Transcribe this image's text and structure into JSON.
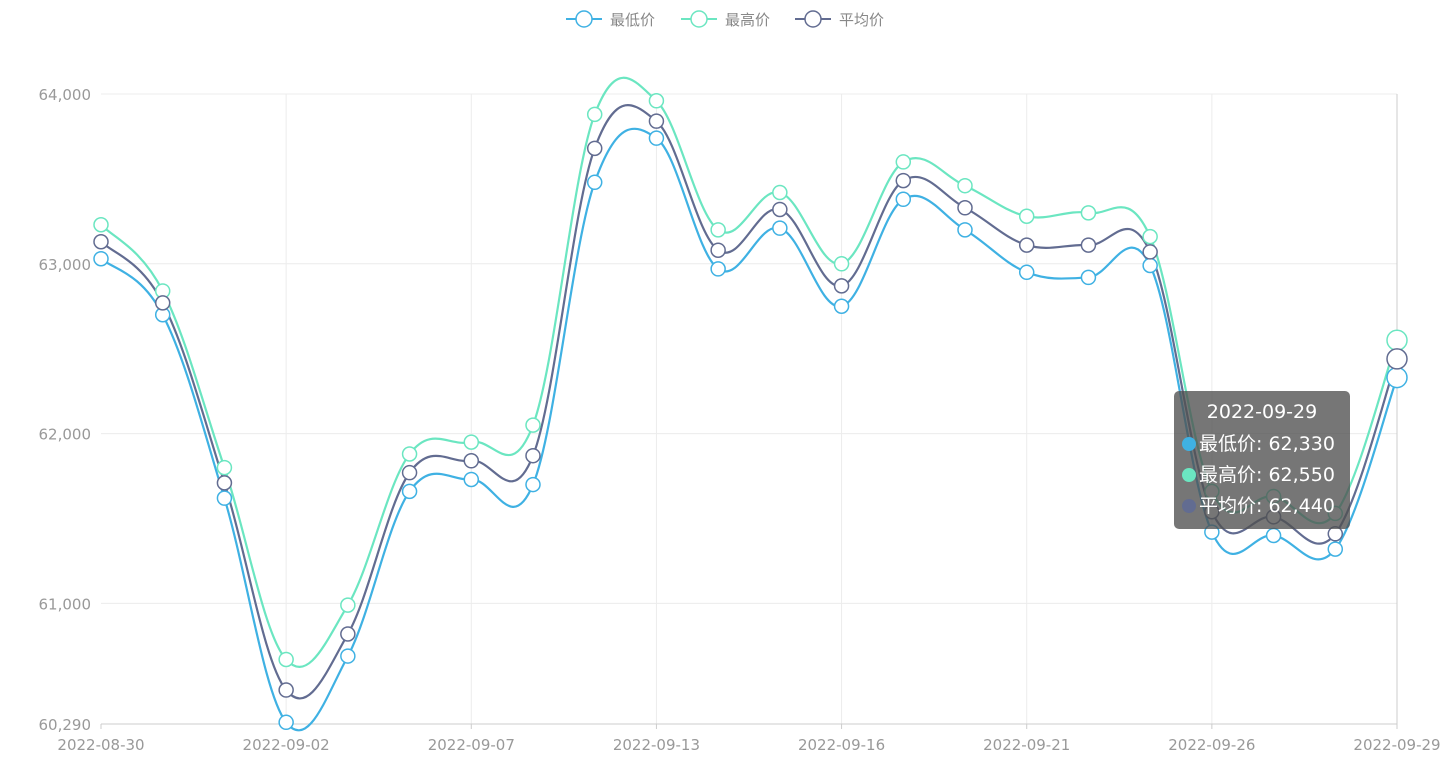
{
  "chart_data": {
    "type": "line",
    "smooth": true,
    "x": [
      "2022-08-30",
      "2022-08-31",
      "2022-09-01",
      "2022-09-02",
      "2022-09-05",
      "2022-09-06",
      "2022-09-07",
      "2022-09-08",
      "2022-09-09",
      "2022-09-13",
      "2022-09-14",
      "2022-09-15",
      "2022-09-16",
      "2022-09-19",
      "2022-09-20",
      "2022-09-21",
      "2022-09-22",
      "2022-09-23",
      "2022-09-26",
      "2022-09-27",
      "2022-09-28",
      "2022-09-29"
    ],
    "x_tick_labels": [
      "2022-08-30",
      "2022-09-02",
      "2022-09-07",
      "2022-09-13",
      "2022-09-16",
      "2022-09-21",
      "2022-09-26",
      "2022-09-29"
    ],
    "ylim": [
      60290,
      64000
    ],
    "y_ticks": [
      60290,
      61000,
      62000,
      63000,
      64000
    ],
    "y_tick_labels": [
      "60,290",
      "61,000",
      "62,000",
      "63,000",
      "64,000"
    ],
    "grid": true,
    "legend_position": "top-center",
    "series": [
      {
        "name": "最低价",
        "color": "#3fb1e3",
        "values": [
          63030,
          62700,
          61620,
          60300,
          60690,
          61660,
          61730,
          61700,
          63480,
          63740,
          62970,
          63210,
          62750,
          63380,
          63200,
          62950,
          62920,
          62990,
          61420,
          61400,
          61320,
          62330
        ]
      },
      {
        "name": "最高价",
        "color": "#6be6c1",
        "values": [
          63230,
          62840,
          61800,
          60670,
          60990,
          61880,
          61950,
          62050,
          63880,
          63960,
          63200,
          63420,
          63000,
          63600,
          63460,
          63280,
          63300,
          63160,
          61660,
          61630,
          61530,
          62550
        ]
      },
      {
        "name": "平均价",
        "color": "#626c91",
        "values": [
          63130,
          62770,
          61710,
          60490,
          60820,
          61770,
          61840,
          61870,
          63680,
          63840,
          63080,
          63320,
          62870,
          63490,
          63330,
          63110,
          63110,
          63070,
          61540,
          61510,
          61410,
          62440
        ]
      }
    ],
    "tooltip": {
      "title": "2022-09-29",
      "rows": [
        {
          "label": "最低价: 62,330",
          "color": "#3fb1e3"
        },
        {
          "label": "最高价: 62,550",
          "color": "#6be6c1"
        },
        {
          "label": "平均价: 62,440",
          "color": "#626c91"
        }
      ]
    }
  }
}
